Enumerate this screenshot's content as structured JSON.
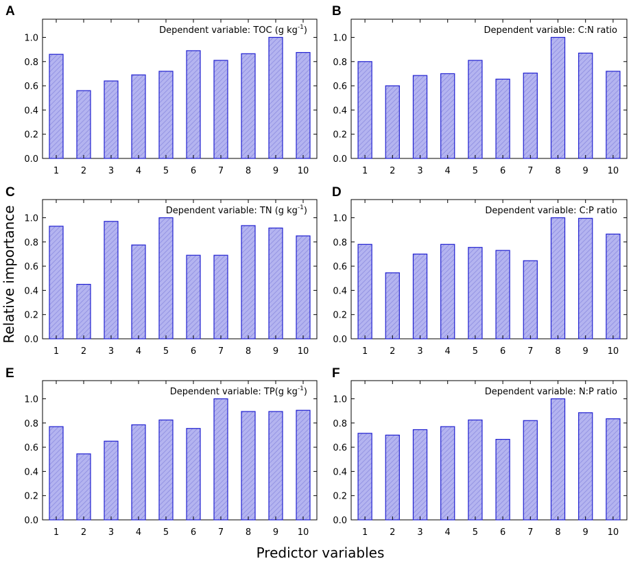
{
  "figure": {
    "ylabel": "Relative importance",
    "xlabel": "Predictor variables"
  },
  "colors": {
    "bar_fill": "#b4b4f0",
    "bar_stroke": "#2020d0",
    "hatch": "#8c8ce0"
  },
  "chart_data": [
    {
      "type": "bar",
      "panel": "A",
      "title": "Dependent variable: TOC (g kg",
      "title_sup": "-1",
      "title_close": ")",
      "categories": [
        "1",
        "2",
        "3",
        "4",
        "5",
        "6",
        "7",
        "8",
        "9",
        "10"
      ],
      "values": [
        0.86,
        0.56,
        0.64,
        0.69,
        0.72,
        0.89,
        0.81,
        0.865,
        1.0,
        0.875
      ],
      "ylim": [
        0,
        1.15
      ],
      "yticks": [
        "0.0",
        "0.2",
        "0.4",
        "0.6",
        "0.8",
        "1.0"
      ],
      "ylabel": "Relative importance",
      "xlabel": "Predictor variables"
    },
    {
      "type": "bar",
      "panel": "B",
      "title": "Dependent variable: C:N ratio",
      "title_sup": "",
      "title_close": "",
      "categories": [
        "1",
        "2",
        "3",
        "4",
        "5",
        "6",
        "7",
        "8",
        "9",
        "10"
      ],
      "values": [
        0.8,
        0.6,
        0.685,
        0.7,
        0.81,
        0.655,
        0.705,
        1.0,
        0.87,
        0.72
      ],
      "ylim": [
        0,
        1.15
      ],
      "yticks": [
        "0.0",
        "0.2",
        "0.4",
        "0.6",
        "0.8",
        "1.0"
      ],
      "ylabel": "Relative importance",
      "xlabel": "Predictor variables"
    },
    {
      "type": "bar",
      "panel": "C",
      "title": "Dependent variable: TN (g kg",
      "title_sup": "-1",
      "title_close": ")",
      "categories": [
        "1",
        "2",
        "3",
        "4",
        "5",
        "6",
        "7",
        "8",
        "9",
        "10"
      ],
      "values": [
        0.93,
        0.45,
        0.97,
        0.775,
        1.0,
        0.69,
        0.69,
        0.935,
        0.915,
        0.85
      ],
      "ylim": [
        0,
        1.15
      ],
      "yticks": [
        "0.0",
        "0.2",
        "0.4",
        "0.6",
        "0.8",
        "1.0"
      ],
      "ylabel": "Relative importance",
      "xlabel": "Predictor variables"
    },
    {
      "type": "bar",
      "panel": "D",
      "title": "Dependent variable: C:P ratio",
      "title_sup": "",
      "title_close": "",
      "categories": [
        "1",
        "2",
        "3",
        "4",
        "5",
        "6",
        "7",
        "8",
        "9",
        "10"
      ],
      "values": [
        0.78,
        0.545,
        0.7,
        0.78,
        0.755,
        0.73,
        0.645,
        1.0,
        0.995,
        0.865
      ],
      "ylim": [
        0,
        1.15
      ],
      "yticks": [
        "0.0",
        "0.2",
        "0.4",
        "0.6",
        "0.8",
        "1.0"
      ],
      "ylabel": "Relative importance",
      "xlabel": "Predictor variables"
    },
    {
      "type": "bar",
      "panel": "E",
      "title": "Dependent variable: TP(g kg",
      "title_sup": "-1",
      "title_close": ")",
      "categories": [
        "1",
        "2",
        "3",
        "4",
        "5",
        "6",
        "7",
        "8",
        "9",
        "10"
      ],
      "values": [
        0.77,
        0.545,
        0.65,
        0.785,
        0.825,
        0.755,
        1.0,
        0.895,
        0.895,
        0.905
      ],
      "ylim": [
        0,
        1.15
      ],
      "yticks": [
        "0.0",
        "0.2",
        "0.4",
        "0.6",
        "0.8",
        "1.0"
      ],
      "ylabel": "Relative importance",
      "xlabel": "Predictor variables"
    },
    {
      "type": "bar",
      "panel": "F",
      "title": "Dependent variable: N:P ratio",
      "title_sup": "",
      "title_close": "",
      "categories": [
        "1",
        "2",
        "3",
        "4",
        "5",
        "6",
        "7",
        "8",
        "9",
        "10"
      ],
      "values": [
        0.715,
        0.7,
        0.745,
        0.77,
        0.825,
        0.665,
        0.82,
        1.0,
        0.885,
        0.835
      ],
      "ylim": [
        0,
        1.15
      ],
      "yticks": [
        "0.0",
        "0.2",
        "0.4",
        "0.6",
        "0.8",
        "1.0"
      ],
      "ylabel": "Relative importance",
      "xlabel": "Predictor variables"
    }
  ]
}
